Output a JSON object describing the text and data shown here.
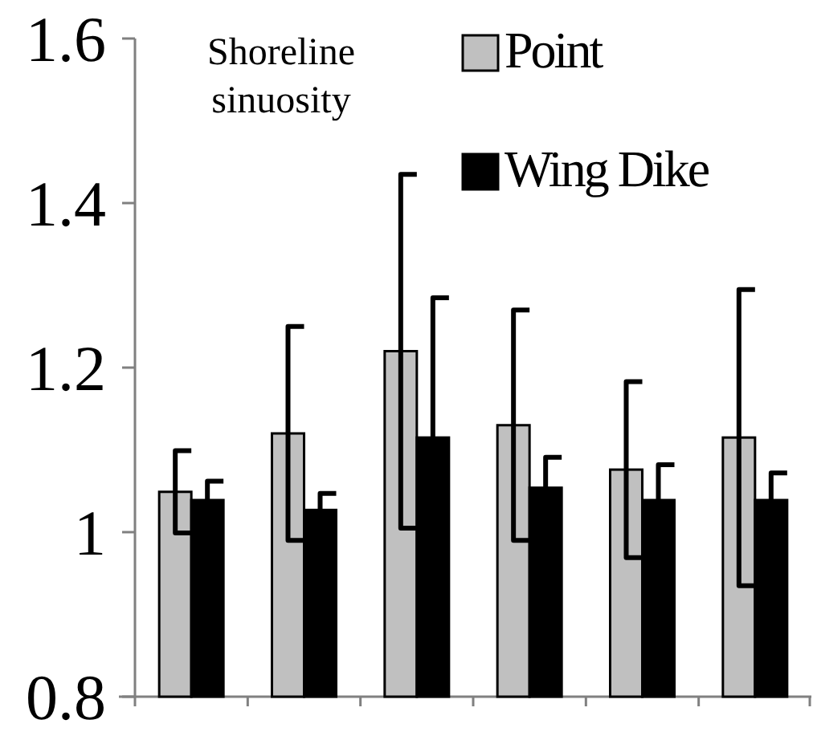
{
  "chart_data": {
    "type": "bar",
    "title": "Shoreline sinuosity",
    "categories": [
      null,
      null,
      null,
      null,
      null,
      null
    ],
    "series": [
      {
        "name": "Point",
        "color": "#c0c0c0",
        "values": [
          1.049,
          1.12,
          1.22,
          1.13,
          1.076,
          1.115
        ],
        "errors": [
          0.05,
          0.13,
          0.215,
          0.14,
          0.107,
          0.18
        ]
      },
      {
        "name": "Wing Dike",
        "color": "#000000",
        "values": [
          1.039,
          1.027,
          1.115,
          1.054,
          1.039,
          1.039
        ],
        "errors": [
          0.023,
          0.02,
          0.17,
          0.037,
          0.043,
          0.033
        ]
      }
    ],
    "ylim": [
      0.8,
      1.6
    ],
    "yticks": [
      0.8,
      1,
      1.2,
      1.4,
      1.6
    ],
    "grid": false,
    "legend": "top right"
  }
}
